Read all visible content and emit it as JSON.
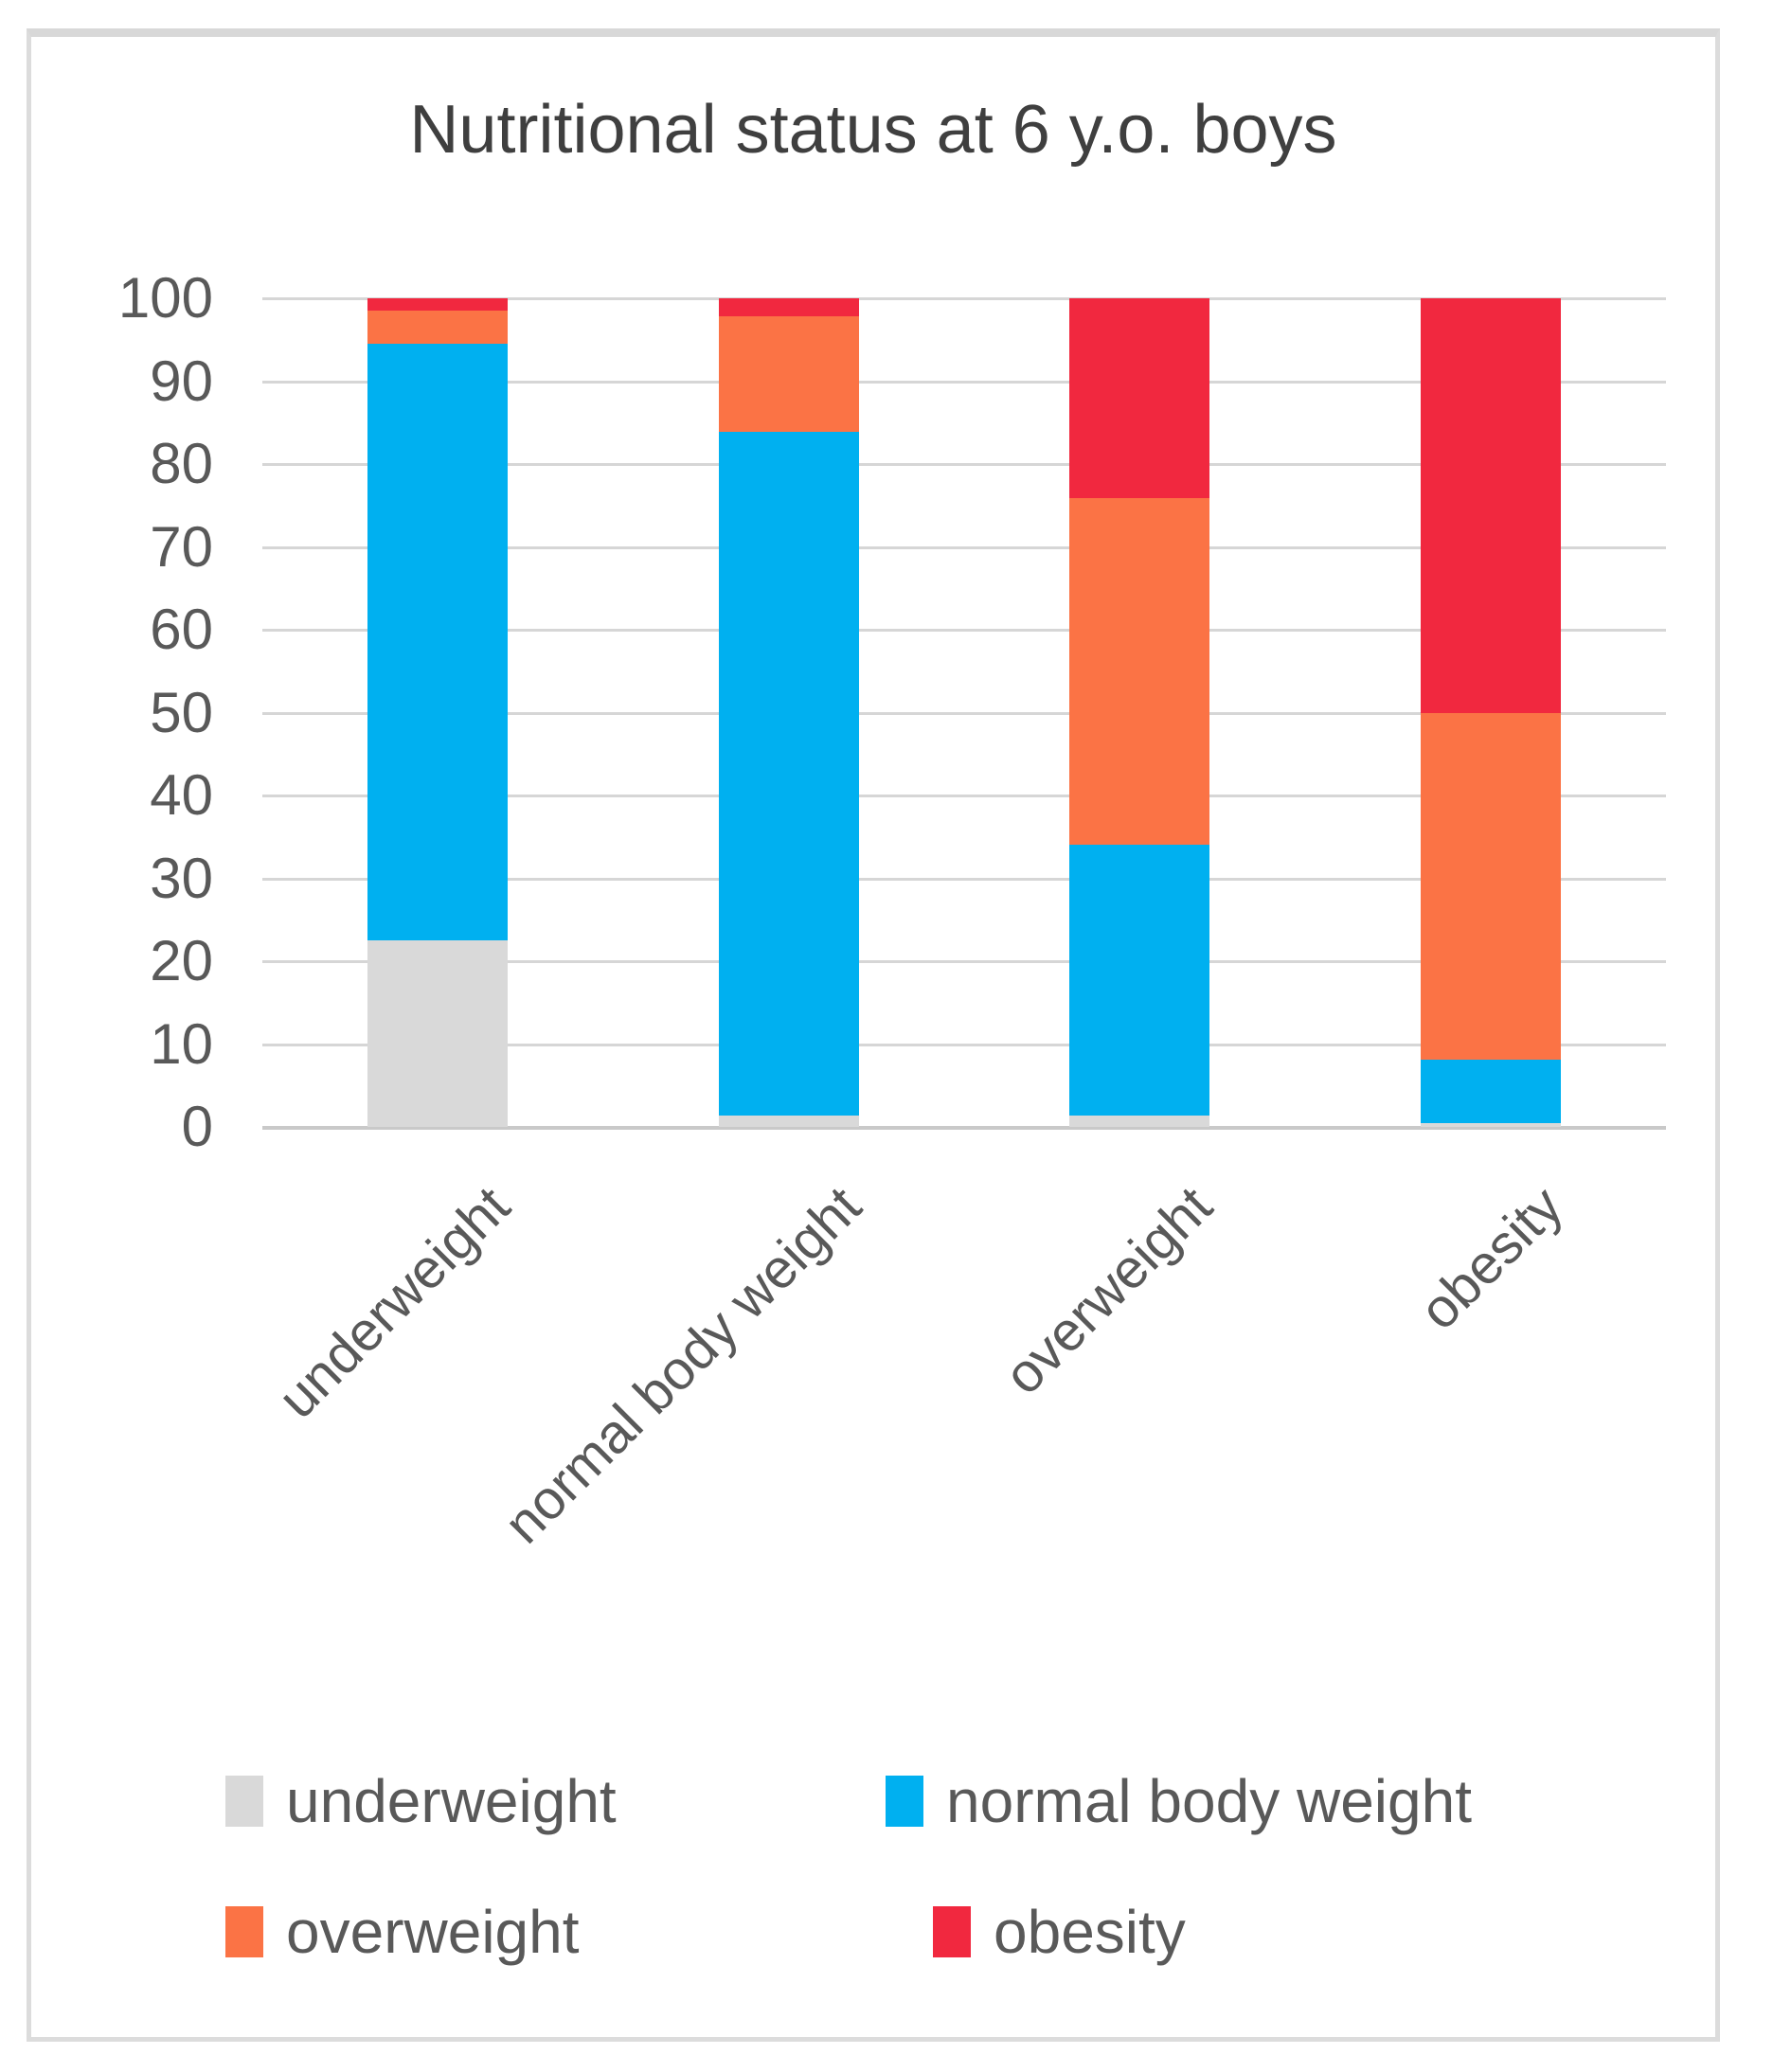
{
  "chart_data": {
    "type": "bar",
    "stacked": true,
    "percent_stacked": true,
    "title": "Nutritional status at 6 y.o. boys",
    "categories": [
      "underweight",
      "normal body weight",
      "overweight",
      "obesity"
    ],
    "series": [
      {
        "name": "underweight",
        "color": "#d9d9d9",
        "values": [
          22.5,
          1.4,
          1.4,
          0.5
        ]
      },
      {
        "name": "normal body weight",
        "color": "#00b0f0",
        "values": [
          72.0,
          82.5,
          32.7,
          7.6
        ]
      },
      {
        "name": "overweight",
        "color": "#fb7345",
        "values": [
          4.0,
          13.9,
          41.8,
          41.9
        ]
      },
      {
        "name": "obesity",
        "color": "#f1283f",
        "values": [
          1.5,
          2.2,
          24.1,
          50.0
        ]
      }
    ],
    "xlabel": "",
    "ylabel": "",
    "ylim": [
      0,
      100
    ],
    "yticks": [
      0,
      10,
      20,
      30,
      40,
      50,
      60,
      70,
      80,
      90,
      100
    ],
    "grid": true,
    "legend_position": "bottom",
    "x_label_rotation_deg": 45
  },
  "frame": {
    "border_color": "#d9d9d9",
    "background": "#ffffff"
  }
}
